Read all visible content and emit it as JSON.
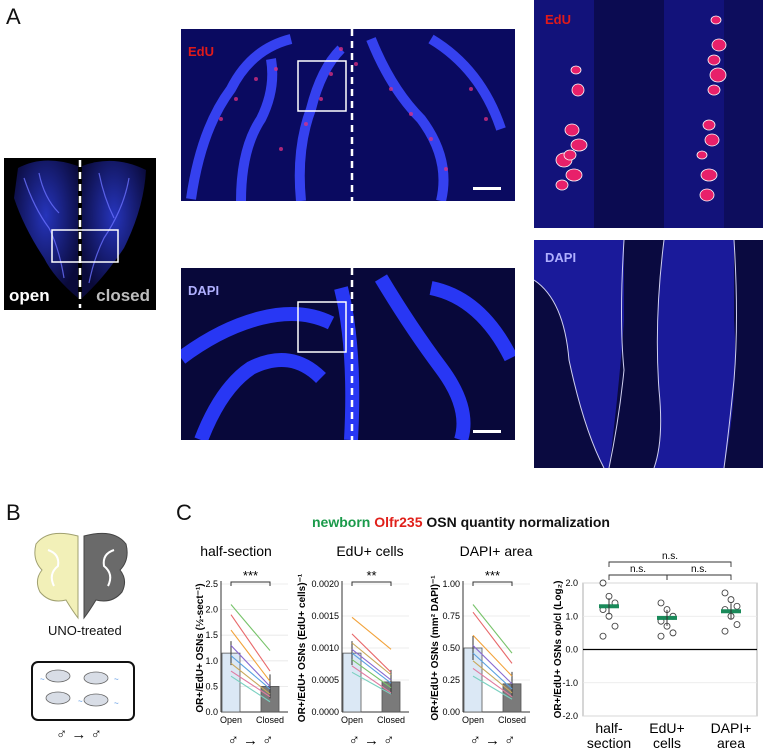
{
  "panels": {
    "A": "A",
    "B": "B",
    "C": "C"
  },
  "panelA": {
    "whole_open": "open",
    "whole_closed": "closed",
    "edu_label": "EdU",
    "dapi_label": "DAPI",
    "edu_zoom_label": "EdU",
    "dapi_zoom_label": "DAPI"
  },
  "panelB": {
    "treatment_label": "UNO-treated",
    "sex_label": "♂ → ♂"
  },
  "panelC": {
    "title_newborn": "newborn",
    "title_gene": "Olfr235",
    "title_rest": "OSN quantity normalization",
    "colors": {
      "newborn": "#1a9a4a",
      "gene": "#e0201a",
      "mean_bar_green": "#1a8a5a",
      "open_fill": "#dbe8f5",
      "closed_fill": "#7a7a7a"
    }
  },
  "chart_data": [
    {
      "type": "bar",
      "title": "half-section",
      "ylabel": "OR+/EdU+ OSNs (½-sect⁻¹)",
      "categories": [
        "Open",
        "Closed"
      ],
      "values": [
        1.15,
        0.5
      ],
      "ylim": [
        0,
        2.5
      ],
      "yticks": [
        "0.0",
        "0.5",
        "1.0",
        "1.5",
        "2.0",
        "2.5"
      ],
      "significance": "***",
      "xfooter": "♂ → ♂",
      "pairs": [
        [
          2.1,
          1.2
        ],
        [
          1.9,
          0.8
        ],
        [
          1.6,
          0.6
        ],
        [
          1.3,
          0.5
        ],
        [
          1.1,
          0.45
        ],
        [
          0.95,
          0.35
        ],
        [
          0.8,
          0.3
        ],
        [
          0.7,
          0.2
        ]
      ],
      "pair_colors": [
        "#77c36a",
        "#e8686a",
        "#f2a23a",
        "#8a6ad0",
        "#5aa0e0",
        "#c9a85a",
        "#e07aa0",
        "#7ad0c0"
      ]
    },
    {
      "type": "bar",
      "title": "EdU+ cells",
      "ylabel": "OR+/EdU+ OSNs (EdU+ cells)⁻¹",
      "categories": [
        "Open",
        "Closed"
      ],
      "values": [
        0.00092,
        0.00047
      ],
      "ylim": [
        0,
        0.002
      ],
      "yticks": [
        "0.0000",
        "0.0005",
        "0.0010",
        "0.0015",
        "0.0020"
      ],
      "significance": "**",
      "xfooter": "♂ → ♂",
      "pairs": [
        [
          0.00148,
          0.00098
        ],
        [
          0.00122,
          0.00062
        ],
        [
          0.00108,
          0.00058
        ],
        [
          0.00098,
          0.0005
        ],
        [
          0.00092,
          0.00045
        ],
        [
          0.00082,
          0.00038
        ],
        [
          0.00072,
          0.0003
        ],
        [
          0.00062,
          0.00028
        ]
      ],
      "pair_colors": [
        "#f2a23a",
        "#e8686a",
        "#c9a85a",
        "#8a6ad0",
        "#5aa0e0",
        "#77c36a",
        "#e07aa0",
        "#7ad0c0"
      ]
    },
    {
      "type": "bar",
      "title": "DAPI+ area",
      "ylabel": "OR+/EdU+ OSNs (mm² DAPI)⁻¹",
      "categories": [
        "Open",
        "Closed"
      ],
      "values": [
        0.5,
        0.22
      ],
      "ylim": [
        0,
        1.0
      ],
      "yticks": [
        "0.00",
        "0.25",
        "0.50",
        "0.75",
        "1.00"
      ],
      "significance": "***",
      "xfooter": "♂ → ♂",
      "pairs": [
        [
          0.84,
          0.46
        ],
        [
          0.78,
          0.38
        ],
        [
          0.6,
          0.28
        ],
        [
          0.52,
          0.22
        ],
        [
          0.46,
          0.18
        ],
        [
          0.4,
          0.15
        ],
        [
          0.34,
          0.12
        ],
        [
          0.28,
          0.1
        ]
      ],
      "pair_colors": [
        "#77c36a",
        "#e8686a",
        "#f2a23a",
        "#8a6ad0",
        "#5aa0e0",
        "#c9a85a",
        "#e07aa0",
        "#7ad0c0"
      ]
    },
    {
      "type": "scatter",
      "ylabel": "OR+/EdU+ OSNs op/cl (Log₂)",
      "categories": [
        "half-\nsection",
        "EdU+\ncells",
        "DAPI+\narea"
      ],
      "cat_lines": [
        [
          "half-",
          "section"
        ],
        [
          "EdU+",
          "cells"
        ],
        [
          "DAPI+",
          "area"
        ]
      ],
      "means": [
        1.3,
        0.95,
        1.15
      ],
      "points": [
        [
          2.0,
          1.6,
          1.4,
          1.2,
          1.0,
          0.7,
          0.4
        ],
        [
          1.4,
          1.2,
          1.0,
          0.85,
          0.7,
          0.5,
          0.4
        ],
        [
          1.7,
          1.5,
          1.3,
          1.2,
          1.0,
          0.75,
          0.55
        ]
      ],
      "ylim": [
        -2.0,
        2.0
      ],
      "yticks": [
        "2.0",
        "1.0",
        "0.0",
        "-1.0",
        "-2.0"
      ],
      "comparisons": [
        "n.s.",
        "n.s.",
        "n.s."
      ]
    }
  ]
}
